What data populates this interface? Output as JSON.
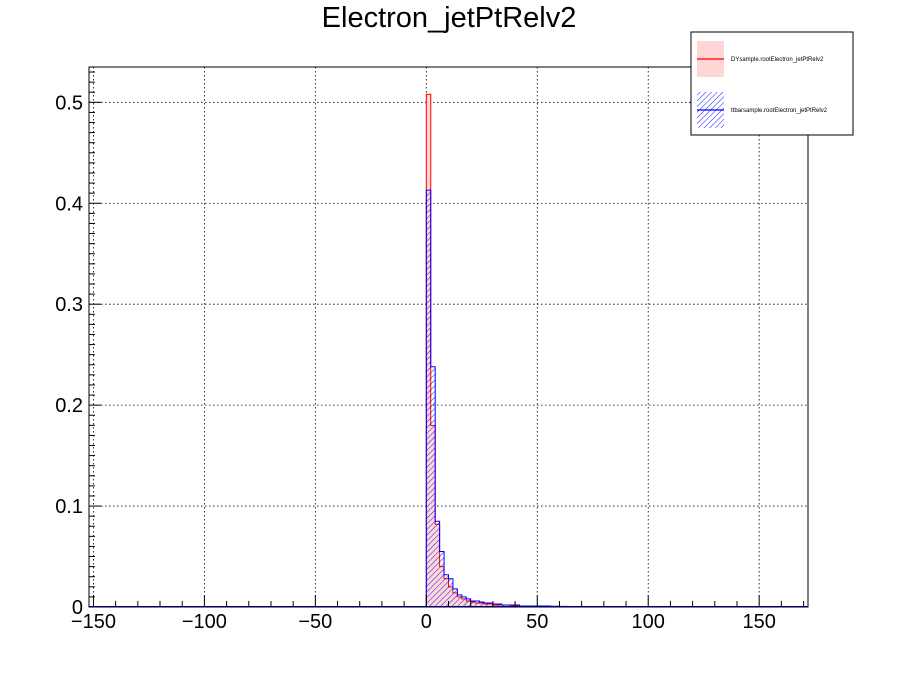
{
  "chart_data": {
    "type": "bar",
    "title": "Electron_jetPtRelv2",
    "xlabel": "",
    "ylabel": "",
    "xlim": [
      -152,
      172
    ],
    "ylim": [
      0,
      0.535
    ],
    "grid": true,
    "legend_position": "top-right",
    "x_ticks": [
      -150,
      -100,
      -50,
      0,
      50,
      100,
      150
    ],
    "x_tick_labels": [
      "−150",
      "−100",
      "−50",
      "0",
      "50",
      "100",
      "150"
    ],
    "y_ticks": [
      0,
      0.1,
      0.2,
      0.3,
      0.4,
      0.5
    ],
    "y_tick_labels": [
      "0",
      "0.1",
      "0.2",
      "0.3",
      "0.4",
      "0.5"
    ],
    "bin_edges": [
      0,
      2,
      4,
      6,
      8,
      10,
      12,
      14,
      16,
      18,
      20,
      22,
      24,
      26,
      28,
      30,
      32,
      34,
      36,
      38,
      40,
      42,
      44,
      46,
      48,
      50,
      52,
      54,
      56,
      58,
      60,
      62,
      64,
      66,
      68,
      70,
      72,
      74,
      76,
      78,
      80
    ],
    "series": [
      {
        "name": "DYsample.rootElectron_jetPtRelv2",
        "color": "#ff0000",
        "fill": "#ffd6d6",
        "fill_style": "solid",
        "values": [
          0.508,
          0.18,
          0.082,
          0.04,
          0.028,
          0.02,
          0.014,
          0.01,
          0.008,
          0.006,
          0.005,
          0.004,
          0.004,
          0.003,
          0.003,
          0.002,
          0.002,
          0.002,
          0.002,
          0.001,
          0.001,
          0.001,
          0.001,
          0.001,
          0.001,
          0.001,
          0.001,
          0.0005,
          0.0005,
          0.0005,
          0.0005,
          0.0005,
          0.0005,
          0.0005,
          0.0003,
          0.0003,
          0.0003,
          0.0003,
          0.0003,
          0.0003
        ]
      },
      {
        "name": "ttbarsample.rootElectron_jetPtRelv2",
        "color": "#0000ff",
        "fill": "#0000ff",
        "fill_style": "hatched",
        "values": [
          0.413,
          0.238,
          0.085,
          0.055,
          0.032,
          0.028,
          0.018,
          0.012,
          0.01,
          0.008,
          0.006,
          0.006,
          0.005,
          0.004,
          0.004,
          0.003,
          0.003,
          0.002,
          0.002,
          0.002,
          0.002,
          0.001,
          0.001,
          0.001,
          0.001,
          0.001,
          0.001,
          0.001,
          0.0008,
          0.0008,
          0.0006,
          0.0006,
          0.0005,
          0.0005,
          0.0004,
          0.0004,
          0.0003,
          0.0003,
          0.0003,
          0.0003
        ]
      }
    ]
  }
}
